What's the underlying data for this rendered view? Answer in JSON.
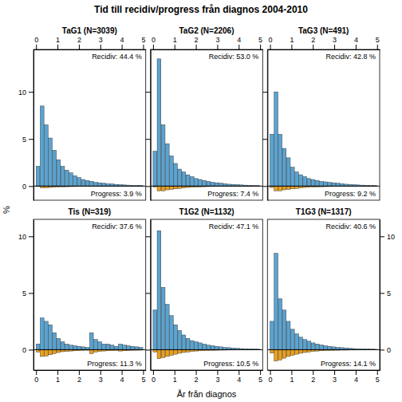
{
  "title": "Tid till recidiv/progress från diagnos 2004-2010",
  "xlabel": "År från diagnos",
  "ylabel": "%",
  "chart_data": [
    {
      "type": "bar",
      "title": "TaG1 (N=3039)",
      "x": [
        0,
        0.192308,
        0.384615,
        0.576923,
        0.769231,
        0.961538,
        1.153846,
        1.346154,
        1.538462,
        1.730769,
        1.923077,
        2.115385,
        2.307692,
        2.5,
        2.692308,
        2.884615,
        3.076923,
        3.269231,
        3.461538,
        3.653846,
        3.846154,
        4.038462,
        4.230769,
        4.423077,
        4.615385,
        4.807692
      ],
      "series": [
        {
          "color": "#5BA3D0",
          "values": [
            2.1,
            8.5,
            6.5,
            5.1,
            3.8,
            2.8,
            2.1,
            1.7,
            1.4,
            1.1,
            0.9,
            0.7,
            0.6,
            0.5,
            0.4,
            0.35,
            0.3,
            0.25,
            0.22,
            0.18,
            0.15,
            0.12,
            0.1,
            0.08,
            0.07,
            0.06
          ]
        },
        {
          "color": "#E8A020",
          "values": [
            -0.05,
            -0.18,
            -0.18,
            -0.15,
            -0.12,
            -0.1,
            -0.08,
            -0.07,
            -0.06,
            -0.05,
            -0.04,
            -0.04,
            -0.03,
            -0.03,
            -0.02,
            -0.02,
            -0.015,
            -0.01,
            -0.01,
            -0.01,
            -0.01,
            -0.01,
            -0.01,
            -0.01,
            -0.01,
            -0.01
          ]
        }
      ],
      "annotations": [
        "Recidiv: 44.4 %",
        "Progress: 3.9 %"
      ],
      "xlim": [
        -0.12,
        5.12
      ],
      "xticks": [
        0,
        1,
        2,
        3,
        4,
        5
      ],
      "ylim": [
        -1.5,
        14.5
      ],
      "yticks": [
        0,
        5,
        10
      ]
    },
    {
      "type": "bar",
      "title": "TaG2 (N=2206)",
      "x": [
        0,
        0.192308,
        0.384615,
        0.576923,
        0.769231,
        0.961538,
        1.153846,
        1.346154,
        1.538462,
        1.730769,
        1.923077,
        2.115385,
        2.307692,
        2.5,
        2.692308,
        2.884615,
        3.076923,
        3.269231,
        3.461538,
        3.653846,
        3.846154,
        4.038462,
        4.230769,
        4.423077,
        4.615385,
        4.807692
      ],
      "series": [
        {
          "color": "#5BA3D0",
          "values": [
            3.7,
            13.5,
            6.5,
            4.5,
            3.2,
            2.4,
            1.8,
            1.5,
            1.2,
            1.0,
            0.8,
            0.7,
            0.6,
            0.5,
            0.4,
            0.35,
            0.3,
            0.25,
            0.2,
            0.18,
            0.15,
            0.12,
            0.1,
            0.08,
            0.07,
            0.06
          ]
        },
        {
          "color": "#E8A020",
          "values": [
            -0.1,
            -0.5,
            -0.5,
            -0.4,
            -0.35,
            -0.3,
            -0.25,
            -0.2,
            -0.15,
            -0.12,
            -0.1,
            -0.08,
            -0.07,
            -0.06,
            -0.05,
            -0.04,
            -0.04,
            -0.03,
            -0.03,
            -0.02,
            -0.02,
            -0.015,
            -0.01,
            -0.01,
            -0.01,
            -0.01
          ]
        }
      ],
      "annotations": [
        "Recidiv: 53.0 %",
        "Progress: 7.4 %"
      ],
      "xlim": [
        -0.12,
        5.12
      ],
      "xticks": [
        0,
        1,
        2,
        3,
        4,
        5
      ],
      "ylim": [
        -1.5,
        14.5
      ],
      "yticks": [
        0,
        5,
        10
      ],
      "tick_labels": "x"
    },
    {
      "type": "bar",
      "title": "TaG3 (N=491)",
      "x": [
        0,
        0.192308,
        0.384615,
        0.576923,
        0.769231,
        0.961538,
        1.153846,
        1.346154,
        1.538462,
        1.730769,
        1.923077,
        2.115385,
        2.307692,
        2.5,
        2.692308,
        2.884615,
        3.076923,
        3.269231,
        3.461538,
        3.653846,
        3.846154,
        4.038462,
        4.230769,
        4.423077,
        4.615385,
        4.807692
      ],
      "series": [
        {
          "color": "#5BA3D0",
          "values": [
            5.5,
            10.0,
            5.5,
            4.0,
            3.0,
            2.0,
            1.5,
            1.2,
            1.0,
            0.8,
            0.7,
            0.6,
            0.5,
            0.45,
            0.4,
            0.35,
            0.3,
            0.25,
            0.2,
            0.18,
            0.15,
            0.12,
            0.1,
            0.08,
            0.07,
            0.06
          ]
        },
        {
          "color": "#E8A020",
          "values": [
            -0.15,
            -0.5,
            -0.5,
            -0.4,
            -0.35,
            -0.3,
            -0.25,
            -0.2,
            -0.15,
            -0.12,
            -0.1,
            -0.08,
            -0.07,
            -0.06,
            -0.05,
            -0.04,
            -0.04,
            -0.03,
            -0.03,
            -0.02,
            -0.02,
            -0.015,
            -0.01,
            -0.01,
            -0.01,
            -0.01
          ]
        }
      ],
      "annotations": [
        "Recidiv: 42.8 %",
        "Progress: 9.2 %"
      ],
      "xlim": [
        -0.12,
        5.12
      ],
      "xticks": [
        0,
        1,
        2,
        3,
        4,
        5
      ],
      "ylim": [
        -1.5,
        14.5
      ],
      "yticks": [
        0,
        5,
        10
      ],
      "tick_labels": "x"
    },
    {
      "type": "bar",
      "title": "Tis (N=319)",
      "x": [
        0,
        0.192308,
        0.384615,
        0.576923,
        0.769231,
        0.961538,
        1.153846,
        1.346154,
        1.538462,
        1.730769,
        1.923077,
        2.115385,
        2.307692,
        2.5,
        2.692308,
        2.884615,
        3.076923,
        3.269231,
        3.461538,
        3.653846,
        3.846154,
        4.038462,
        4.230769,
        4.423077,
        4.615385,
        4.807692
      ],
      "series": [
        {
          "color": "#5BA3D0",
          "values": [
            0.5,
            2.8,
            2.5,
            2.2,
            1.5,
            1.0,
            0.7,
            0.5,
            0.4,
            0.35,
            0.3,
            0.25,
            0.2,
            1.5,
            0.9,
            0.7,
            0.5,
            0.5,
            0.4,
            0.3,
            0.5,
            0.4,
            0.35,
            0.3,
            0.25,
            0.2
          ]
        },
        {
          "color": "#E8A020",
          "values": [
            -0.2,
            -0.6,
            -0.55,
            -0.45,
            -0.35,
            -0.25,
            -0.18,
            -0.15,
            -0.12,
            -0.1,
            -0.08,
            -0.06,
            -0.05,
            -0.35,
            -0.2,
            -0.15,
            -0.12,
            -0.1,
            -0.08,
            -0.06,
            -0.12,
            -0.1,
            -0.08,
            -0.06,
            -0.05,
            -0.04
          ]
        }
      ],
      "annotations": [
        "Recidiv: 37.6 %",
        "Progress: 11.3 %"
      ],
      "xlim": [
        -0.12,
        5.12
      ],
      "xticks": [
        0,
        1,
        2,
        3,
        4,
        5
      ],
      "ylim": [
        -1.8,
        11.5
      ],
      "yticks": [
        0,
        5,
        10
      ]
    },
    {
      "type": "bar",
      "title": "T1G2 (N=1132)",
      "x": [
        0,
        0.192308,
        0.384615,
        0.576923,
        0.769231,
        0.961538,
        1.153846,
        1.346154,
        1.538462,
        1.730769,
        1.923077,
        2.115385,
        2.307692,
        2.5,
        2.692308,
        2.884615,
        3.076923,
        3.269231,
        3.461538,
        3.653846,
        3.846154,
        4.038462,
        4.230769,
        4.423077,
        4.615385,
        4.807692
      ],
      "series": [
        {
          "color": "#5BA3D0",
          "values": [
            3.5,
            10.5,
            5.5,
            4.0,
            3.0,
            2.2,
            1.7,
            1.3,
            1.0,
            0.8,
            0.7,
            0.6,
            0.5,
            0.4,
            0.35,
            0.3,
            0.25,
            0.2,
            0.18,
            0.15,
            0.12,
            0.1,
            0.08,
            0.07,
            0.06,
            0.05
          ]
        },
        {
          "color": "#E8A020",
          "values": [
            -0.2,
            -0.8,
            -0.7,
            -0.6,
            -0.5,
            -0.4,
            -0.32,
            -0.25,
            -0.2,
            -0.15,
            -0.12,
            -0.1,
            -0.08,
            -0.07,
            -0.06,
            -0.05,
            -0.04,
            -0.04,
            -0.03,
            -0.03,
            -0.02,
            -0.02,
            -0.015,
            -0.01,
            -0.01,
            -0.01
          ]
        }
      ],
      "annotations": [
        "Recidiv: 47.1 %",
        "Progress: 10.5 %"
      ],
      "xlim": [
        -0.12,
        5.12
      ],
      "xticks": [
        0,
        1,
        2,
        3,
        4,
        5
      ],
      "ylim": [
        -1.8,
        11.5
      ],
      "yticks": [
        0,
        5,
        10
      ],
      "tick_labels": "x"
    },
    {
      "type": "bar",
      "title": "T1G3 (N=1317)",
      "x": [
        0,
        0.192308,
        0.384615,
        0.576923,
        0.769231,
        0.961538,
        1.153846,
        1.346154,
        1.538462,
        1.730769,
        1.923077,
        2.115385,
        2.307692,
        2.5,
        2.692308,
        2.884615,
        3.076923,
        3.269231,
        3.461538,
        3.653846,
        3.846154,
        4.038462,
        4.230769,
        4.423077,
        4.615385,
        4.807692
      ],
      "series": [
        {
          "color": "#5BA3D0",
          "values": [
            2.5,
            8.5,
            4.5,
            3.5,
            2.5,
            1.8,
            1.4,
            1.1,
            0.9,
            0.75,
            0.6,
            0.5,
            0.42,
            0.35,
            0.3,
            0.25,
            0.2,
            0.18,
            0.15,
            0.12,
            0.1,
            0.08,
            0.07,
            0.06,
            0.05,
            0.04
          ]
        },
        {
          "color": "#E8A020",
          "values": [
            -0.3,
            -1.0,
            -0.9,
            -0.75,
            -0.6,
            -0.5,
            -0.4,
            -0.32,
            -0.25,
            -0.2,
            -0.15,
            -0.12,
            -0.1,
            -0.08,
            -0.07,
            -0.06,
            -0.05,
            -0.04,
            -0.04,
            -0.03,
            -0.03,
            -0.02,
            -0.02,
            -0.015,
            -0.01,
            -0.01
          ]
        }
      ],
      "annotations": [
        "Recidiv: 40.6 %",
        "Progress: 14.1 %"
      ],
      "xlim": [
        -0.12,
        5.12
      ],
      "xticks": [
        0,
        1,
        2,
        3,
        4,
        5
      ],
      "ylim": [
        -1.8,
        11.5
      ],
      "yticks": [
        0,
        5,
        10
      ]
    }
  ]
}
